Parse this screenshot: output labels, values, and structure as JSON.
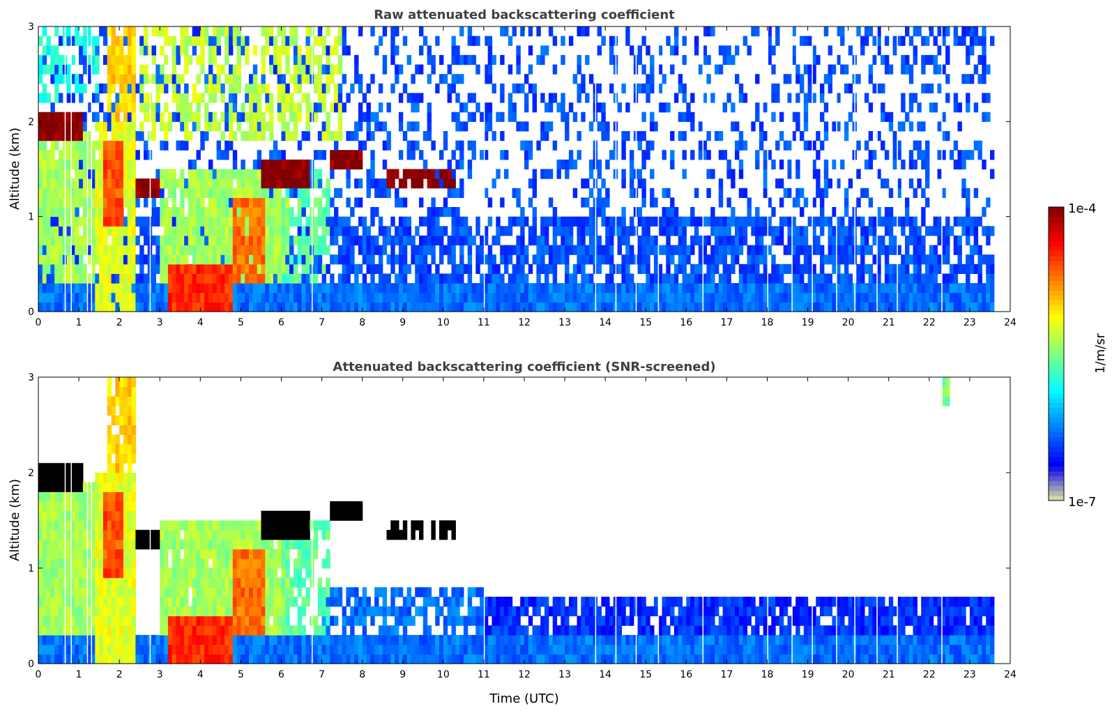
{
  "chart_data": {
    "type": "heatmap",
    "colorbar": {
      "label": "1/m/sr",
      "max_label": "1e-4",
      "min_label": "1e-7",
      "range_log10": [
        -7,
        -4
      ],
      "colormap": "jet"
    },
    "xlabel": "Time (UTC)",
    "panels": [
      {
        "title": "Raw attenuated backscattering coefficient",
        "ylabel": "Altitude (km)",
        "xlim": [
          0,
          24
        ],
        "ylim": [
          0,
          3
        ],
        "xticks": [
          "0",
          "1",
          "2",
          "3",
          "4",
          "5",
          "6",
          "7",
          "8",
          "9",
          "10",
          "11",
          "12",
          "13",
          "14",
          "15",
          "16",
          "17",
          "18",
          "19",
          "20",
          "21",
          "22",
          "23",
          "24"
        ],
        "yticks": [
          "0",
          "1",
          "2",
          "3"
        ],
        "data_end_time": 23.6,
        "features": [
          {
            "t": [
              0,
              23.6
            ],
            "z": [
              0,
              3
            ],
            "log10": -6.4,
            "coverage": 0.3
          },
          {
            "t": [
              0,
              23.6
            ],
            "z": [
              0,
              1.0
            ],
            "log10": -6.4,
            "coverage": 0.6
          },
          {
            "t": [
              0,
              23.6
            ],
            "z": [
              0,
              0.3
            ],
            "log10": -6.3,
            "coverage": 1
          },
          {
            "t": [
              2.5,
              7.5
            ],
            "z": [
              1.8,
              3
            ],
            "log10": -5.3,
            "coverage": 0.5
          },
          {
            "t": [
              0,
              1.5
            ],
            "z": [
              2.2,
              3
            ],
            "log10": -5.8,
            "coverage": 0.5
          },
          {
            "t": [
              0,
              1.4
            ],
            "z": [
              0.3,
              1.9
            ],
            "log10": -5.4,
            "coverage": 0.9
          },
          {
            "t": [
              1.4,
              2.4
            ],
            "z": [
              0,
              2.0
            ],
            "log10": -5.2,
            "coverage": 0.9
          },
          {
            "t": [
              1.6,
              2.1
            ],
            "z": [
              0.9,
              1.8
            ],
            "log10": -4.6,
            "coverage": 1
          },
          {
            "t": [
              1.7,
              2.4
            ],
            "z": [
              2.0,
              3
            ],
            "log10": -5.0,
            "coverage": 0.8
          },
          {
            "t": [
              3.0,
              6.2
            ],
            "z": [
              0.3,
              1.5
            ],
            "log10": -5.4,
            "coverage": 0.9
          },
          {
            "t": [
              3.2,
              4.8
            ],
            "z": [
              0,
              0.5
            ],
            "log10": -4.5,
            "coverage": 1
          },
          {
            "t": [
              4.8,
              5.6
            ],
            "z": [
              0.3,
              1.2
            ],
            "log10": -4.7,
            "coverage": 0.9
          },
          {
            "t": [
              6.0,
              7.2
            ],
            "z": [
              0.3,
              1.5
            ],
            "log10": -5.6,
            "coverage": 0.6
          },
          {
            "t": [
              0,
              1.1
            ],
            "z": [
              1.85,
              2.15
            ],
            "log10": -4.0,
            "coverage": 1
          },
          {
            "t": [
              2.4,
              3.0
            ],
            "z": [
              1.2,
              1.4
            ],
            "log10": -4.0,
            "coverage": 1
          },
          {
            "t": [
              5.5,
              6.7
            ],
            "z": [
              1.35,
              1.65
            ],
            "log10": -4.0,
            "coverage": 1
          },
          {
            "t": [
              7.2,
              8.0
            ],
            "z": [
              1.5,
              1.7
            ],
            "log10": -4.0,
            "coverage": 1
          },
          {
            "t": [
              8.6,
              10.3
            ],
            "z": [
              1.35,
              1.55
            ],
            "log10": -4.0,
            "coverage": 0.7
          }
        ]
      },
      {
        "title": "Attenuated backscattering coefficient (SNR-screened)",
        "ylabel": "Altitude (km)",
        "xlim": [
          0,
          24
        ],
        "ylim": [
          0,
          3
        ],
        "xticks": [
          "0",
          "1",
          "2",
          "3",
          "4",
          "5",
          "6",
          "7",
          "8",
          "9",
          "10",
          "11",
          "12",
          "13",
          "14",
          "15",
          "16",
          "17",
          "18",
          "19",
          "20",
          "21",
          "22",
          "23",
          "24"
        ],
        "yticks": [
          "0",
          "1",
          "2",
          "3"
        ],
        "data_end_time": 23.6,
        "features": [
          {
            "t": [
              0,
              23.6
            ],
            "z": [
              0,
              0.3
            ],
            "log10": -6.3,
            "coverage": 1
          },
          {
            "t": [
              7,
              11
            ],
            "z": [
              0.3,
              0.8
            ],
            "log10": -6.3,
            "coverage": 0.7
          },
          {
            "t": [
              11,
              23.6
            ],
            "z": [
              0.3,
              0.7
            ],
            "log10": -6.5,
            "coverage": 0.85
          },
          {
            "t": [
              0,
              1.4
            ],
            "z": [
              0.3,
              1.9
            ],
            "log10": -5.4,
            "coverage": 1
          },
          {
            "t": [
              1.4,
              2.4
            ],
            "z": [
              0,
              2.0
            ],
            "log10": -5.2,
            "coverage": 1
          },
          {
            "t": [
              1.6,
              2.1
            ],
            "z": [
              0.9,
              1.8
            ],
            "log10": -4.6,
            "coverage": 1
          },
          {
            "t": [
              1.7,
              2.4
            ],
            "z": [
              2.0,
              3
            ],
            "log10": -5.0,
            "coverage": 0.9
          },
          {
            "t": [
              3.0,
              6.2
            ],
            "z": [
              0.3,
              1.5
            ],
            "log10": -5.4,
            "coverage": 0.95
          },
          {
            "t": [
              3.2,
              4.8
            ],
            "z": [
              0,
              0.5
            ],
            "log10": -4.5,
            "coverage": 1
          },
          {
            "t": [
              4.8,
              5.6
            ],
            "z": [
              0.3,
              1.2
            ],
            "log10": -4.7,
            "coverage": 1
          },
          {
            "t": [
              6.0,
              7.2
            ],
            "z": [
              0.3,
              1.5
            ],
            "log10": -5.6,
            "coverage": 0.6
          },
          {
            "t": [
              0,
              1.1
            ],
            "z": [
              1.85,
              2.15
            ],
            "log10": -4.0,
            "coverage": 1,
            "color": "#000000"
          },
          {
            "t": [
              2.4,
              3.0
            ],
            "z": [
              1.2,
              1.4
            ],
            "log10": -4.0,
            "coverage": 1,
            "color": "#000000"
          },
          {
            "t": [
              5.5,
              6.7
            ],
            "z": [
              1.35,
              1.65
            ],
            "log10": -4.0,
            "coverage": 1,
            "color": "#000000"
          },
          {
            "t": [
              7.2,
              8.0
            ],
            "z": [
              1.5,
              1.7
            ],
            "log10": -4.0,
            "coverage": 1,
            "color": "#000000"
          },
          {
            "t": [
              8.6,
              10.3
            ],
            "z": [
              1.35,
              1.55
            ],
            "log10": -4.0,
            "coverage": 0.7,
            "color": "#000000"
          },
          {
            "t": [
              22.3,
              22.5
            ],
            "z": [
              2.7,
              3
            ],
            "log10": -5.5,
            "coverage": 1
          }
        ]
      }
    ]
  }
}
